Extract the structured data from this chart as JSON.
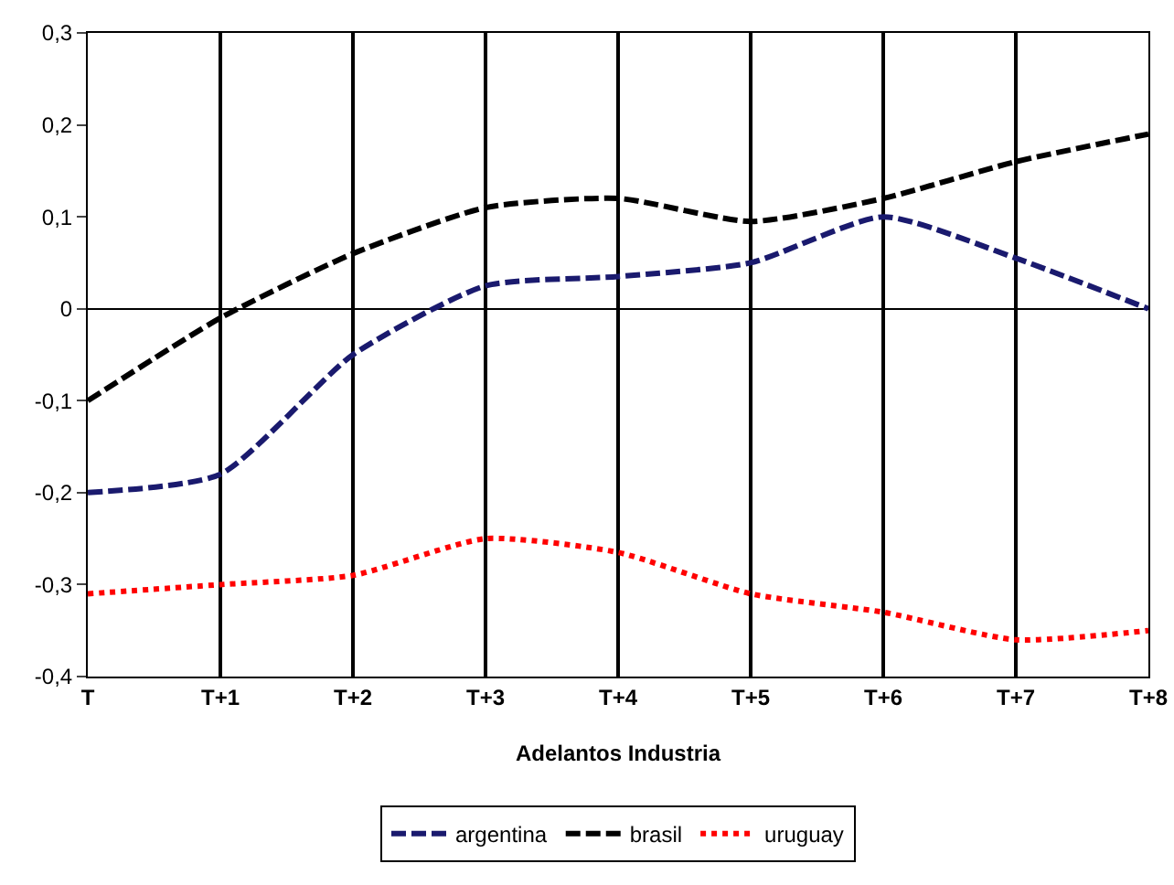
{
  "chart_data": {
    "type": "line",
    "xlabel": "Adelantos Industria",
    "categories": [
      "T",
      "T+1",
      "T+2",
      "T+3",
      "T+4",
      "T+5",
      "T+6",
      "T+7",
      "T+8"
    ],
    "series": [
      {
        "name": "argentina",
        "color": "#1a1a6e",
        "line_style": "dashed",
        "values": [
          -0.2,
          -0.18,
          -0.05,
          0.025,
          0.035,
          0.05,
          0.1,
          0.055,
          0.0
        ]
      },
      {
        "name": "brasil",
        "color": "#000000",
        "line_style": "dashed",
        "values": [
          -0.1,
          -0.01,
          0.06,
          0.11,
          0.12,
          0.095,
          0.12,
          0.16,
          0.19
        ]
      },
      {
        "name": "uruguay",
        "color": "#ff0000",
        "line_style": "dotted",
        "values": [
          -0.31,
          -0.3,
          -0.29,
          -0.25,
          -0.265,
          -0.31,
          -0.33,
          -0.36,
          -0.35
        ]
      }
    ],
    "ylim": [
      -0.4,
      0.3
    ],
    "yticks": [
      {
        "value": -0.4,
        "label": "-0,4"
      },
      {
        "value": -0.3,
        "label": "-0,3"
      },
      {
        "value": -0.2,
        "label": "-0,2"
      },
      {
        "value": -0.1,
        "label": "-0,1"
      },
      0,
      {
        "value": 0.1,
        "label": "0,1"
      },
      {
        "value": 0.2,
        "label": "0,2"
      },
      {
        "value": 0.3,
        "label": "0,3"
      }
    ],
    "grid": "x",
    "legend": "bottom",
    "marker": "none"
  }
}
